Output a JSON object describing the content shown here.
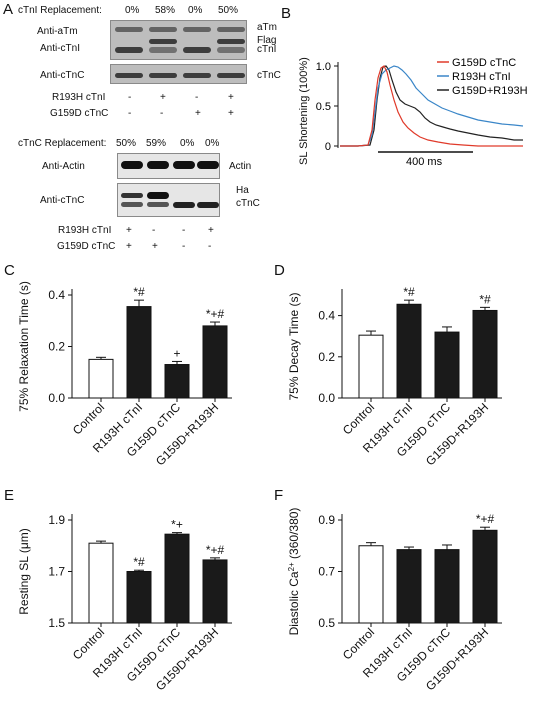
{
  "panelA": {
    "letter": "A",
    "top": {
      "replacement_label": "cTnI Replacement:",
      "replacement_values": [
        "0%",
        "58%",
        "0%",
        "50%"
      ],
      "row1_label": "Anti-aTm",
      "row2_label": "Anti-cTnI",
      "row3_label": "Anti-cTnC",
      "right_labels": [
        "aTm",
        "Flag",
        "cTnI",
        "cTnC"
      ],
      "condition_rows": [
        {
          "label": "R193H cTnI",
          "signs": [
            "-",
            "+",
            "-",
            "+"
          ]
        },
        {
          "label": "G159D cTnC",
          "signs": [
            "-",
            "-",
            "+",
            "+"
          ]
        }
      ]
    },
    "bottom": {
      "replacement_label": "cTnC Replacement:",
      "replacement_values": [
        "50%",
        "59%",
        "0%",
        "0%"
      ],
      "row1_label": "Anti-Actin",
      "row2_label": "Anti-cTnC",
      "right_labels": [
        "Actin",
        "Ha",
        "cTnC"
      ],
      "condition_rows": [
        {
          "label": "R193H cTnI",
          "signs": [
            "+",
            "-",
            "-",
            "+"
          ]
        },
        {
          "label": "G159D cTnC",
          "signs": [
            "+",
            "+",
            "-",
            "-"
          ]
        }
      ]
    }
  },
  "panelB": {
    "letter": "B",
    "ylabel": "SL Shortening (100%)",
    "yticks": [
      "0",
      "0.5",
      "1.0"
    ],
    "scalebar_label": "400 ms",
    "legend": [
      {
        "name": "G159D cTnC",
        "color": "#e03a2a"
      },
      {
        "name": "R193H cTnI",
        "color": "#3a86c8"
      },
      {
        "name": "G159D+R193H",
        "color": "#222222"
      }
    ]
  },
  "categories": [
    "Control",
    "R193H cTnI",
    "G159D cTnC",
    "G159D+R193H"
  ],
  "chart_data": [
    {
      "panel": "C",
      "type": "bar",
      "ylabel": "75%  Relaxation Time (s)",
      "ylim": [
        0,
        0.4
      ],
      "yticks": [
        "0.0",
        "0.2",
        "0.4"
      ],
      "values": [
        0.15,
        0.355,
        0.13,
        0.28
      ],
      "errors": [
        0.008,
        0.025,
        0.012,
        0.015
      ],
      "annotations": [
        "",
        "*#",
        "+",
        "*+#"
      ]
    },
    {
      "panel": "D",
      "type": "bar",
      "ylabel": "75% Decay Time (s)",
      "ylim": [
        0,
        0.5
      ],
      "yticks": [
        "0.0",
        "0.2",
        "0.4"
      ],
      "values": [
        0.305,
        0.455,
        0.32,
        0.425
      ],
      "errors": [
        0.02,
        0.02,
        0.025,
        0.015
      ],
      "annotations": [
        "",
        "*#",
        "",
        "*#"
      ]
    },
    {
      "panel": "E",
      "type": "bar",
      "ylabel": "Resting SL (μm)",
      "ylim": [
        1.5,
        1.9
      ],
      "yticks": [
        "1.5",
        "1.7",
        "1.9"
      ],
      "values": [
        1.81,
        1.7,
        1.845,
        1.745
      ],
      "errors": [
        0.008,
        0.005,
        0.006,
        0.008
      ],
      "annotations": [
        "",
        "*#",
        "*+",
        "*+#"
      ]
    },
    {
      "panel": "F",
      "type": "bar",
      "ylabel": "Diastolic Ca2+ (360/380)",
      "ylim": [
        0.5,
        0.9
      ],
      "yticks": [
        "0.5",
        "0.7",
        "0.9"
      ],
      "values": [
        0.8,
        0.785,
        0.785,
        0.86
      ],
      "errors": [
        0.012,
        0.01,
        0.018,
        0.012
      ],
      "annotations": [
        "",
        "",
        "",
        "*+#"
      ]
    }
  ]
}
